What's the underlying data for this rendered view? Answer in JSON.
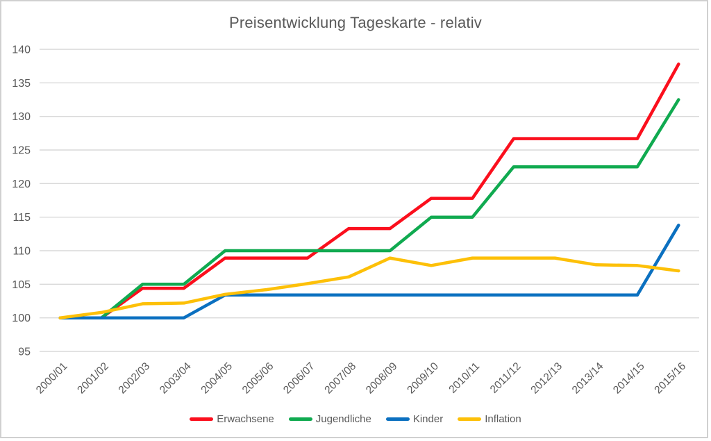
{
  "chart_data": {
    "type": "line",
    "title": "Preisentwicklung Tageskarte - relativ",
    "categories": [
      "2000/01",
      "2001/02",
      "2002/03",
      "2003/04",
      "2004/05",
      "2005/06",
      "2006/07",
      "2007/08",
      "2008/09",
      "2009/10",
      "2010/11",
      "2011/12",
      "2012/13",
      "2013/14",
      "2014/15",
      "2015/16"
    ],
    "series": [
      {
        "name": "Erwachsene",
        "color": "#fb0f1d",
        "values": [
          100,
          100,
          104.4,
          104.4,
          108.9,
          108.9,
          108.9,
          113.3,
          113.3,
          117.8,
          117.8,
          126.7,
          126.7,
          126.7,
          126.7,
          137.8
        ]
      },
      {
        "name": "Jugendliche",
        "color": "#10aa50",
        "values": [
          100,
          100,
          105,
          105,
          110,
          110,
          110,
          110,
          110,
          115,
          115,
          122.5,
          122.5,
          122.5,
          122.5,
          132.5
        ]
      },
      {
        "name": "Kinder",
        "color": "#0b70c0",
        "values": [
          100,
          100,
          100,
          100,
          103.4,
          103.4,
          103.4,
          103.4,
          103.4,
          103.4,
          103.4,
          103.4,
          103.4,
          103.4,
          103.4,
          113.8
        ]
      },
      {
        "name": "Inflation",
        "color": "#fdc008",
        "values": [
          100,
          100.8,
          102.1,
          102.2,
          103.5,
          104.2,
          105.1,
          106.1,
          108.9,
          107.8,
          108.9,
          108.9,
          108.9,
          107.9,
          107.8,
          107
        ]
      }
    ],
    "y_ticks": [
      95,
      100,
      105,
      110,
      115,
      120,
      125,
      130,
      135,
      140
    ],
    "ylim": [
      95,
      140
    ],
    "grid": "horizontal-only",
    "legend_position": "bottom",
    "axis_text_color": "#595959",
    "gridline_color": "#d9d9d9",
    "frame_border_color": "#d0d0d0"
  }
}
